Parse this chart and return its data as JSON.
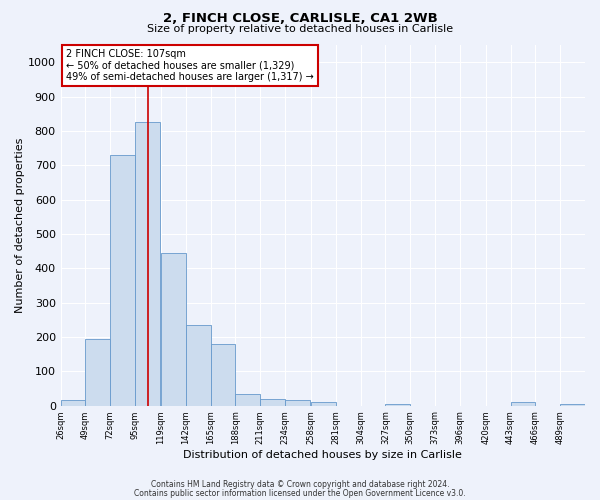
{
  "title": "2, FINCH CLOSE, CARLISLE, CA1 2WB",
  "subtitle": "Size of property relative to detached houses in Carlisle",
  "xlabel": "Distribution of detached houses by size in Carlisle",
  "ylabel": "Number of detached properties",
  "bar_color": "#ccdcee",
  "bar_edge_color": "#6699cc",
  "background_color": "#eef2fb",
  "grid_color": "#ffffff",
  "annotation_box_color": "#cc0000",
  "red_line_x": 107,
  "annotation_title": "2 FINCH CLOSE: 107sqm",
  "annotation_line1": "← 50% of detached houses are smaller (1,329)",
  "annotation_line2": "49% of semi-detached houses are larger (1,317) →",
  "footer_line1": "Contains HM Land Registry data © Crown copyright and database right 2024.",
  "footer_line2": "Contains public sector information licensed under the Open Government Licence v3.0.",
  "bins": [
    26,
    49,
    72,
    95,
    119,
    142,
    165,
    188,
    211,
    234,
    258,
    281,
    304,
    327,
    350,
    373,
    396,
    420,
    443,
    466,
    489
  ],
  "counts": [
    15,
    195,
    730,
    825,
    445,
    235,
    178,
    35,
    20,
    15,
    10,
    0,
    0,
    5,
    0,
    0,
    0,
    0,
    10,
    0,
    5
  ],
  "ylim": [
    0,
    1050
  ],
  "yticks": [
    0,
    100,
    200,
    300,
    400,
    500,
    600,
    700,
    800,
    900,
    1000
  ]
}
